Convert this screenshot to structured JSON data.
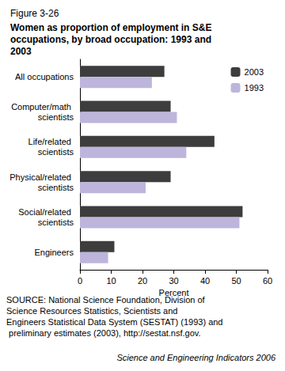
{
  "chart_data": {
    "type": "bar",
    "title": "Figure 3-26",
    "subtitle": "Women as proportion of employment in S&E occupations, by broad occupation: 1993 and 2003",
    "orientation": "horizontal",
    "categories": [
      "All occupations",
      "Computer/math scientists",
      "Life/related scientists",
      "Physical/related scientists",
      "Social/related scientists",
      "Engineers"
    ],
    "series": [
      {
        "name": "2003",
        "color": "#3d3d3d",
        "values": [
          27,
          29,
          43,
          29,
          52,
          11
        ]
      },
      {
        "name": "1993",
        "color": "#bdb5dc",
        "values": [
          23,
          31,
          34,
          21,
          51,
          9
        ]
      }
    ],
    "xlabel": "Percent",
    "xlim": [
      0,
      60
    ],
    "xticks": [
      0,
      10,
      20,
      30,
      40,
      50,
      60
    ],
    "grid": false,
    "legend": "upper right",
    "annotations": [
      "SOURCE: National Science Foundation, Division of Science Resources Statistics, Scientists and Engineers Statistical Data System (SESTAT) (1993) and preliminary estimates (2003), http://sestat.nsf.gov.",
      "Science and Engineering Indicators 2006"
    ]
  }
}
